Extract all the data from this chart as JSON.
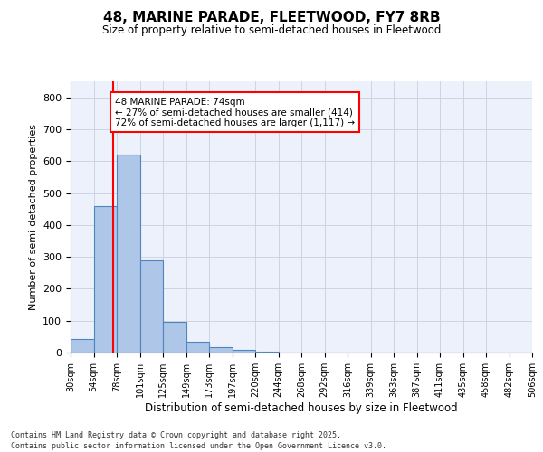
{
  "title1": "48, MARINE PARADE, FLEETWOOD, FY7 8RB",
  "title2": "Size of property relative to semi-detached houses in Fleetwood",
  "xlabel": "Distribution of semi-detached houses by size in Fleetwood",
  "ylabel": "Number of semi-detached properties",
  "bins": [
    "30sqm",
    "54sqm",
    "78sqm",
    "101sqm",
    "125sqm",
    "149sqm",
    "173sqm",
    "197sqm",
    "220sqm",
    "244sqm",
    "268sqm",
    "292sqm",
    "316sqm",
    "339sqm",
    "363sqm",
    "387sqm",
    "411sqm",
    "435sqm",
    "458sqm",
    "482sqm",
    "506sqm"
  ],
  "bar_values": [
    42,
    460,
    620,
    290,
    95,
    35,
    18,
    8,
    3,
    1,
    0,
    0,
    0,
    0,
    0,
    0,
    0,
    0,
    0,
    0
  ],
  "bar_color": "#aec6e8",
  "bar_edge_color": "#4f86c0",
  "property_sqm": 74,
  "annotation_text": "48 MARINE PARADE: 74sqm\n← 27% of semi-detached houses are smaller (414)\n72% of semi-detached houses are larger (1,117) →",
  "annotation_box_color": "white",
  "annotation_box_edge": "red",
  "vline_color": "red",
  "ylim": [
    0,
    850
  ],
  "yticks": [
    0,
    100,
    200,
    300,
    400,
    500,
    600,
    700,
    800
  ],
  "footer": "Contains HM Land Registry data © Crown copyright and database right 2025.\nContains public sector information licensed under the Open Government Licence v3.0.",
  "bg_color": "#edf1fb",
  "grid_color": "#c8cfe0"
}
